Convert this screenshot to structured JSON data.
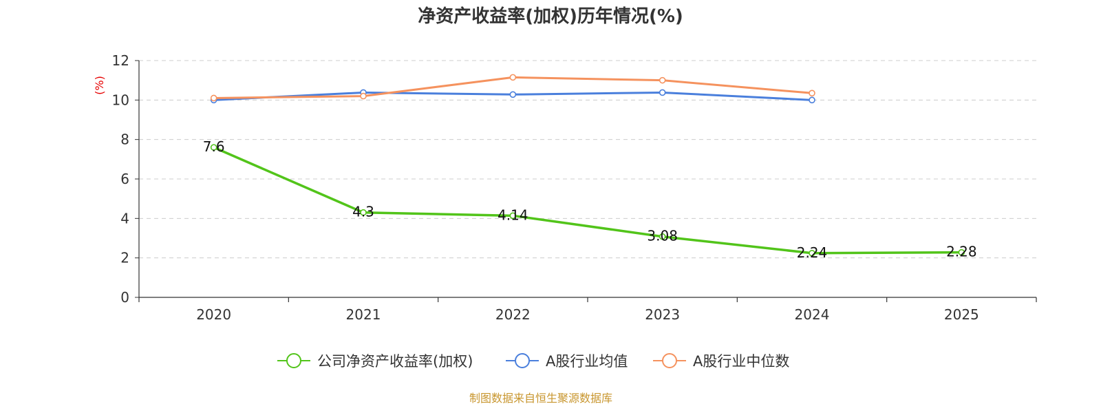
{
  "chart_data": {
    "type": "line",
    "title": "净资产收益率(加权)历年情况(%)",
    "ylabel": "(%)",
    "xlabel": "",
    "x": [
      "2020",
      "2021",
      "2022",
      "2023",
      "2024",
      "2025"
    ],
    "ylim": [
      0,
      12
    ],
    "yticks": [
      0,
      2,
      4,
      6,
      8,
      10,
      12
    ],
    "grid": true,
    "legend_position": "bottom",
    "series": [
      {
        "name": "公司净资产收益率(加权)",
        "color": "#52c41a",
        "values": [
          7.6,
          4.3,
          4.14,
          3.08,
          2.24,
          2.28
        ],
        "labels": [
          "7.6",
          "4.3",
          "4.14",
          "3.08",
          "2.24",
          "2.28"
        ]
      },
      {
        "name": "A股行业均值",
        "color": "#4a7fdc",
        "values": [
          10.0,
          10.38,
          10.28,
          10.38,
          10.0,
          null
        ]
      },
      {
        "name": "A股行业中位数",
        "color": "#f5925e",
        "values": [
          10.1,
          10.2,
          11.15,
          11.0,
          10.35,
          null
        ]
      }
    ]
  },
  "footer": {
    "source": "制图数据来自恒生聚源数据库"
  }
}
